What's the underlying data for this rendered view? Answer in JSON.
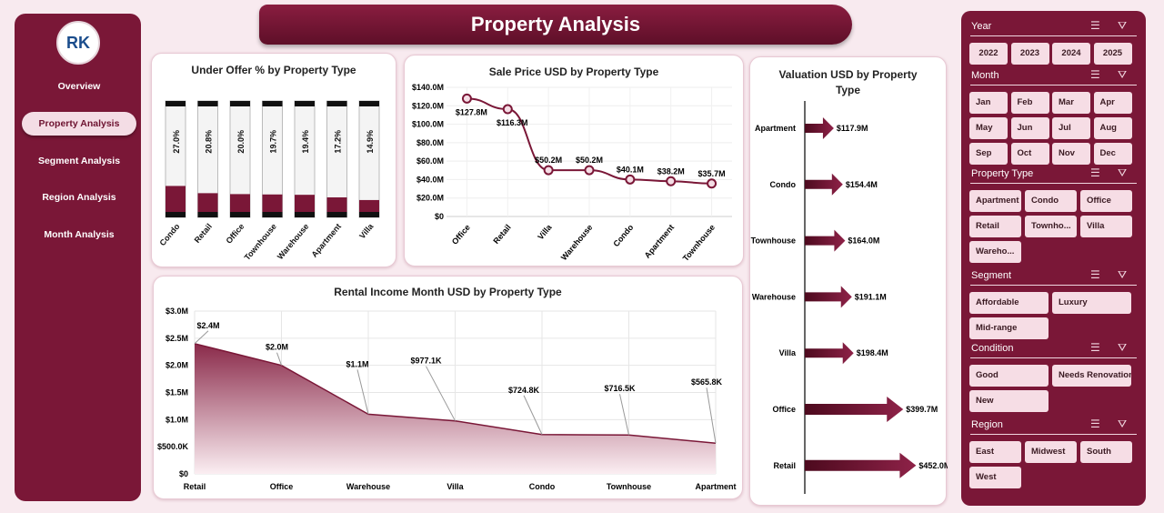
{
  "sidebar": {
    "logo_text": "RK",
    "items": [
      {
        "label": "Overview"
      },
      {
        "label": "Property Analysis",
        "active": true
      },
      {
        "label": "Segment Analysis"
      },
      {
        "label": "Region Analysis"
      },
      {
        "label": "Month Analysis"
      }
    ]
  },
  "header": {
    "title": "Property Analysis"
  },
  "colors": {
    "accent": "#7a1737",
    "background": "#f8eaef",
    "slicer_button": "#f6dde5"
  },
  "chart_data": [
    {
      "type": "bar",
      "title": "Under Offer % by Property Type",
      "categories": [
        "Condo",
        "Retail",
        "Office",
        "Townhouse",
        "Warehouse",
        "Apartment",
        "Villa"
      ],
      "values": [
        27.0,
        20.8,
        20.0,
        19.7,
        19.4,
        17.2,
        14.9
      ],
      "data_labels": [
        "27.0%",
        "20.8%",
        "20.0%",
        "19.7%",
        "19.4%",
        "17.2%",
        "14.9%"
      ],
      "ylim": [
        0,
        100
      ]
    },
    {
      "type": "line",
      "title": "Sale Price USD by Property Type",
      "categories": [
        "Office",
        "Retail",
        "Villa",
        "Warehouse",
        "Condo",
        "Apartment",
        "Townhouse"
      ],
      "values": [
        127.8,
        116.3,
        50.2,
        50.2,
        40.1,
        38.2,
        35.7
      ],
      "data_labels": [
        "$127.8M",
        "$116.3M",
        "$50.2M",
        "$50.2M",
        "$40.1M",
        "$38.2M",
        "$35.7M"
      ],
      "ylim": [
        0,
        140
      ],
      "yticks": [
        "$0",
        "$20.0M",
        "$40.0M",
        "$60.0M",
        "$80.0M",
        "$100.0M",
        "$120.0M",
        "$140.0M"
      ],
      "grid": true
    },
    {
      "type": "area",
      "title": "Rental Income Month USD by Property Type",
      "categories": [
        "Retail",
        "Office",
        "Warehouse",
        "Villa",
        "Condo",
        "Townhouse",
        "Apartment"
      ],
      "values": [
        2.4,
        2.0,
        1.1,
        0.9771,
        0.7248,
        0.7165,
        0.5658
      ],
      "data_labels": [
        "$2.4M",
        "$2.0M",
        "$1.1M",
        "$977.1K",
        "$724.8K",
        "$716.5K",
        "$565.8K"
      ],
      "ylim": [
        0,
        3
      ],
      "yticks": [
        "$0",
        "$500.0K",
        "$1.0M",
        "$1.5M",
        "$2.0M",
        "$2.5M",
        "$3.0M"
      ],
      "grid": true
    },
    {
      "type": "bar",
      "orientation": "horizontal",
      "title": "Valuation USD by Property Type",
      "categories": [
        "Apartment",
        "Condo",
        "Townhouse",
        "Warehouse",
        "Villa",
        "Office",
        "Retail"
      ],
      "values": [
        117.9,
        154.4,
        164.0,
        191.1,
        198.4,
        399.7,
        452.0
      ],
      "data_labels": [
        "$117.9M",
        "$154.4M",
        "$164.0M",
        "$191.1M",
        "$198.4M",
        "$399.7M",
        "$452.0M"
      ],
      "xlim": [
        0,
        480
      ]
    }
  ],
  "slicers": [
    {
      "title": "Year",
      "items": [
        "2022",
        "2023",
        "2024",
        "2025"
      ]
    },
    {
      "title": "Month",
      "items": [
        "Jan",
        "Feb",
        "Mar",
        "Apr",
        "May",
        "Jun",
        "Jul",
        "Aug",
        "Sep",
        "Oct",
        "Nov",
        "Dec"
      ]
    },
    {
      "title": "Property Type",
      "items": [
        "Apartment",
        "Condo",
        "Office",
        "Retail",
        "Townho...",
        "Villa",
        "Wareho..."
      ]
    },
    {
      "title": "Segment",
      "items": [
        "Affordable",
        "Luxury",
        "Mid-range"
      ]
    },
    {
      "title": "Condition",
      "items": [
        "Good",
        "Needs Renovation",
        "New"
      ]
    },
    {
      "title": "Region",
      "items": [
        "East",
        "Midwest",
        "South",
        "West"
      ]
    }
  ]
}
